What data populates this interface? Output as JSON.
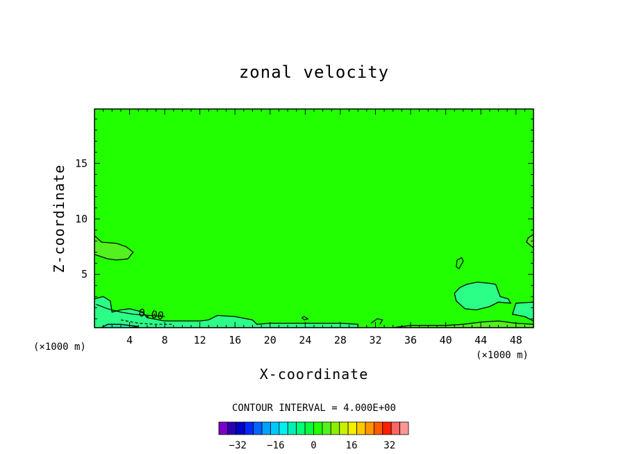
{
  "chart_data": {
    "type": "contour",
    "title": "zonal velocity",
    "xlabel": "X-coordinate",
    "ylabel": "Z-coordinate",
    "x_unit_left": "(×1000 m)",
    "x_unit_right": "(×1000 m)",
    "xlim": [
      0,
      50
    ],
    "ylim": [
      0.2,
      19.9
    ],
    "x_ticks": [
      4,
      8,
      12,
      16,
      20,
      24,
      28,
      32,
      36,
      40,
      44,
      48
    ],
    "y_ticks": [
      5,
      10,
      15
    ],
    "background_color": "#22ff00",
    "contour_labels": [
      {
        "text": "0.00",
        "x": 6.4,
        "y": 1.1
      }
    ],
    "regions": [
      {
        "name": "near-zero-left",
        "color": "#2bff88",
        "points": [
          [
            0,
            0.2
          ],
          [
            0,
            2.8
          ],
          [
            1,
            3
          ],
          [
            1.8,
            2.6
          ],
          [
            2,
            1.6
          ],
          [
            3,
            1.8
          ],
          [
            4,
            1.9
          ],
          [
            5.5,
            1.6
          ],
          [
            6,
            1.1
          ],
          [
            8,
            0.8
          ],
          [
            10,
            0.8
          ],
          [
            12,
            0.8
          ],
          [
            13,
            0.9
          ],
          [
            14,
            1.3
          ],
          [
            16,
            1.2
          ],
          [
            18,
            0.9
          ],
          [
            18.5,
            0.5
          ],
          [
            20,
            0.6
          ],
          [
            24,
            0.6
          ],
          [
            28,
            0.6
          ],
          [
            30,
            0.5
          ],
          [
            30,
            0.2
          ]
        ]
      },
      {
        "name": "negative-core-left",
        "color": "#00f5a8",
        "points": [
          [
            0.8,
            0.2
          ],
          [
            1.5,
            0.5
          ],
          [
            3,
            0.5
          ],
          [
            5,
            0.3
          ],
          [
            4,
            0.2
          ]
        ]
      },
      {
        "name": "positive-blob-upper-left",
        "color": "#55f020",
        "points": [
          [
            0,
            8.5
          ],
          [
            0.8,
            7.9
          ],
          [
            2.5,
            7.8
          ],
          [
            3.6,
            7.5
          ],
          [
            4.4,
            7.0
          ],
          [
            3.8,
            6.4
          ],
          [
            2.5,
            6.3
          ],
          [
            1.5,
            6.4
          ],
          [
            0,
            6.8
          ]
        ]
      },
      {
        "name": "negative-blob-right",
        "color": "#2bff88",
        "points": [
          [
            41,
            3.3
          ],
          [
            41.2,
            2.6
          ],
          [
            42.2,
            1.9
          ],
          [
            43.5,
            1.8
          ],
          [
            45,
            2.1
          ],
          [
            46,
            2.5
          ],
          [
            47.4,
            2.4
          ],
          [
            47.1,
            2.8
          ],
          [
            46.2,
            3.0
          ],
          [
            45.7,
            4.1
          ],
          [
            44.9,
            4.2
          ],
          [
            43.6,
            4.3
          ],
          [
            42.4,
            4.1
          ],
          [
            41.6,
            3.8
          ]
        ]
      },
      {
        "name": "negative-edge-right",
        "color": "#2bff88",
        "points": [
          [
            50,
            2.5
          ],
          [
            48,
            2.4
          ],
          [
            47.6,
            1.4
          ],
          [
            49,
            1.2
          ],
          [
            50,
            0.8
          ]
        ]
      },
      {
        "name": "positive-strip-bottom",
        "color": "#55f020",
        "points": [
          [
            34,
            0.2
          ],
          [
            36,
            0.4
          ],
          [
            40,
            0.4
          ],
          [
            42,
            0.5
          ],
          [
            44,
            0.7
          ],
          [
            46,
            0.8
          ],
          [
            48,
            0.6
          ],
          [
            50,
            0.5
          ],
          [
            50,
            0.2
          ]
        ]
      },
      {
        "name": "positive-edge-right",
        "color": "#55f020",
        "points": [
          [
            50,
            8.6
          ],
          [
            49.4,
            8.3
          ],
          [
            49.2,
            7.9
          ],
          [
            50,
            7.4
          ]
        ]
      }
    ],
    "contour_lines": [
      [
        [
          0.2,
          2.3
        ],
        [
          1.5,
          1.9
        ],
        [
          3,
          1.6
        ],
        [
          4.5,
          1.4
        ],
        [
          6.3,
          1.3
        ],
        [
          8,
          1.2
        ]
      ],
      [
        [
          3,
          0.9
        ],
        [
          5,
          0.6
        ],
        [
          7,
          0.5
        ],
        [
          9,
          0.5
        ]
      ],
      [
        [
          41.5,
          5.5
        ],
        [
          42,
          6.2
        ],
        [
          41.8,
          6.5
        ],
        [
          41.3,
          6.3
        ],
        [
          41.2,
          5.7
        ],
        [
          41.5,
          5.5
        ]
      ],
      [
        [
          23.6,
          1.1
        ],
        [
          23.9,
          0.9
        ],
        [
          24.3,
          1.0
        ],
        [
          23.9,
          1.2
        ],
        [
          23.6,
          1.1
        ]
      ],
      [
        [
          31.5,
          0.6
        ],
        [
          32.2,
          1.0
        ],
        [
          32.8,
          0.9
        ],
        [
          32.5,
          0.5
        ]
      ]
    ],
    "colorbar": {
      "title": "CONTOUR INTERVAL = 4.000E+00",
      "tick_labels": [
        "−32",
        "−16",
        "0",
        "16",
        "32"
      ],
      "tick_values": [
        -32,
        -16,
        0,
        16,
        32
      ],
      "range": [
        -40,
        40
      ],
      "colors": [
        "#7a00c8",
        "#2a00b0",
        "#0000c8",
        "#0028ff",
        "#0064ff",
        "#00a0ff",
        "#00c8ff",
        "#00f0f0",
        "#00f0b4",
        "#00ff78",
        "#00ff3c",
        "#22ff00",
        "#55f020",
        "#8cf000",
        "#c8f000",
        "#f0f000",
        "#ffc800",
        "#ff9600",
        "#ff5a00",
        "#ff1e00",
        "#ff6464",
        "#ff9696"
      ]
    }
  }
}
